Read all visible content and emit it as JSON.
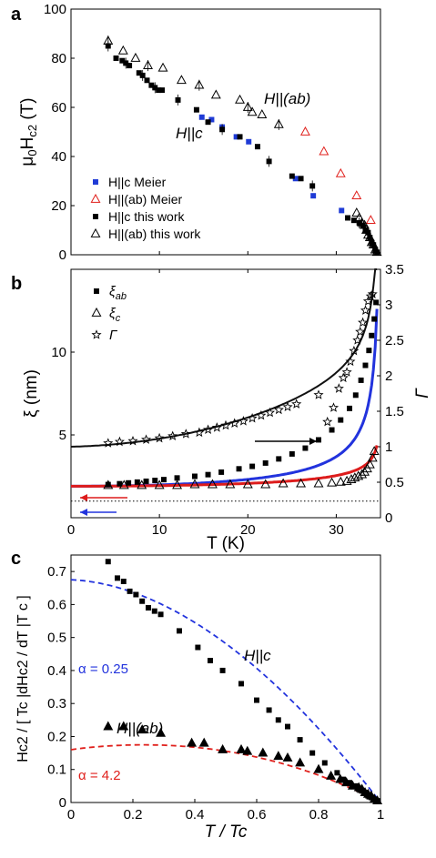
{
  "panels": {
    "a": {
      "letter": "a"
    },
    "b": {
      "letter": "b"
    },
    "c": {
      "letter": "c"
    }
  },
  "chart_data": [
    {
      "type": "scatter",
      "panel": "a",
      "ylabel": "μ0Hc2 (T)",
      "xlim": [
        0,
        35
      ],
      "ylim": [
        0,
        100
      ],
      "yticks": [
        0,
        20,
        40,
        60,
        80,
        100
      ],
      "annotations": [
        "H||(ab)",
        "H||c"
      ],
      "legend": {
        "position": "bottom-left",
        "entries": [
          "H||c Meier",
          "H||(ab) Meier",
          "H||c this work",
          "H||(ab) this work"
        ]
      },
      "series": [
        {
          "name": "H||c Meier",
          "color": "#1f3bd6",
          "marker": "filled-square",
          "x": [
            14.8,
            15.9,
            17.1,
            18.7,
            20.1,
            25.4,
            27.4,
            30.6
          ],
          "y": [
            56,
            55,
            52,
            48,
            46,
            31,
            24,
            18
          ]
        },
        {
          "name": "H||(ab) Meier",
          "color": "#e0201c",
          "marker": "open-triangle",
          "x": [
            26.5,
            28.6,
            30.5,
            32.3,
            33.9
          ],
          "y": [
            50,
            42,
            33,
            24,
            14
          ]
        },
        {
          "name": "H||c this work",
          "color": "#000000",
          "marker": "filled-square",
          "x": [
            4.2,
            5.1,
            5.8,
            6.2,
            6.6,
            7.7,
            8.1,
            8.6,
            9.1,
            9.5,
            9.9,
            10.3,
            12.1,
            14.2,
            15.5,
            17.1,
            19.1,
            21.1,
            22.4,
            25.0,
            26.0,
            27.3,
            31.3,
            32.0,
            32.6,
            33.0,
            33.3,
            33.6,
            33.8,
            34.0,
            34.2,
            34.4,
            34.6
          ],
          "y": [
            85,
            80,
            79,
            78,
            77,
            74,
            73,
            71,
            69,
            68,
            67,
            67,
            63,
            59,
            54,
            51,
            48,
            44,
            38,
            32,
            31,
            28,
            15,
            14,
            13,
            12,
            10,
            9,
            7,
            5,
            4,
            2,
            1
          ]
        },
        {
          "name": "H||(ab) this work",
          "color": "#000000",
          "marker": "open-triangle",
          "x": [
            4.2,
            5.9,
            7.3,
            8.7,
            10.4,
            12.5,
            14.5,
            16.4,
            19.1,
            20.0,
            20.5,
            21.6,
            23.5,
            32.3,
            32.6,
            32.9,
            33.2,
            33.4,
            33.6,
            33.8,
            34.0,
            34.2,
            34.4,
            34.6
          ],
          "y": [
            87,
            83,
            80,
            77,
            76,
            71,
            69,
            65,
            63,
            60,
            58,
            57,
            53,
            17,
            15,
            13,
            12,
            10,
            8,
            7,
            5,
            4,
            2,
            1
          ]
        }
      ]
    },
    {
      "type": "scatter",
      "panel": "b",
      "xlabel": "T  (K)",
      "ylabel": "ξ  (nm)",
      "ylabel_right": "Γ",
      "xlim": [
        0,
        35
      ],
      "ylim": [
        0,
        15
      ],
      "ylim_right": [
        0,
        3.5
      ],
      "xticks": [
        0,
        10,
        20,
        30
      ],
      "yticks": [
        5,
        10
      ],
      "yticks_right": [
        0,
        0.5,
        1,
        1.5,
        2,
        2.5,
        3,
        3.5
      ],
      "legend": {
        "position": "top-right",
        "entries": [
          "ξab",
          "ξc",
          "Γ"
        ]
      },
      "reference_line": {
        "axis": "left",
        "y": 1.0,
        "style": "dotted"
      },
      "series": [
        {
          "name": "ξab",
          "axis": "left",
          "marker": "filled-square",
          "color": "#000000",
          "x": [
            4.2,
            5.5,
            6.5,
            7.5,
            8.5,
            9.5,
            10.5,
            12.0,
            14.0,
            15.5,
            17.0,
            19.0,
            20.5,
            22.0,
            23.5,
            25.0,
            26.5,
            28.0,
            29.5,
            30.5,
            31.5,
            32.2,
            32.8,
            33.3,
            33.7,
            34.0,
            34.3,
            34.5
          ],
          "y": [
            2.0,
            2.05,
            2.1,
            2.15,
            2.2,
            2.25,
            2.3,
            2.4,
            2.5,
            2.6,
            2.75,
            2.95,
            3.1,
            3.3,
            3.55,
            3.85,
            4.2,
            4.7,
            5.3,
            5.9,
            6.6,
            7.4,
            8.3,
            9.2,
            10.1,
            11.0,
            12.0,
            13.0
          ]
        },
        {
          "name": "ξc",
          "axis": "left",
          "marker": "open-triangle",
          "color": "#000000",
          "x": [
            4.2,
            6.0,
            8.0,
            10.0,
            12.0,
            14.0,
            16.0,
            18.0,
            20.0,
            22.0,
            24.0,
            26.0,
            28.0,
            29.5,
            30.5,
            31.2,
            31.7,
            32.1,
            32.5,
            32.9,
            33.2,
            33.5,
            33.8,
            34.1,
            34.3
          ],
          "y": [
            1.95,
            1.95,
            1.95,
            1.95,
            1.95,
            2.0,
            2.0,
            2.0,
            2.0,
            2.0,
            2.05,
            2.05,
            2.05,
            2.1,
            2.15,
            2.2,
            2.3,
            2.4,
            2.5,
            2.6,
            2.75,
            2.95,
            3.2,
            3.6,
            4.0
          ]
        },
        {
          "name": "Γ",
          "axis": "right",
          "marker": "open-star",
          "color": "#000000",
          "x": [
            4.2,
            5.5,
            7.0,
            8.5,
            10.0,
            11.5,
            13.0,
            14.5,
            15.5,
            16.5,
            17.5,
            18.5,
            19.5,
            20.5,
            21.5,
            22.5,
            23.5,
            24.5,
            25.5,
            28.0,
            29.0,
            29.7,
            30.3,
            30.8,
            31.2,
            31.6,
            32.0,
            32.4,
            32.7,
            33.0,
            33.3,
            33.6,
            33.9,
            34.1
          ],
          "y": [
            1.05,
            1.07,
            1.08,
            1.1,
            1.12,
            1.15,
            1.18,
            1.2,
            1.24,
            1.27,
            1.3,
            1.33,
            1.36,
            1.4,
            1.44,
            1.48,
            1.52,
            1.56,
            1.6,
            1.73,
            1.35,
            1.55,
            1.82,
            1.97,
            2.05,
            2.2,
            2.35,
            2.5,
            2.62,
            2.75,
            2.92,
            3.05,
            3.12,
            3.15
          ]
        }
      ],
      "fit_curves": [
        {
          "for": "ξab",
          "color": "#2233dd",
          "axis": "left"
        },
        {
          "for": "ξc",
          "color": "#dd1c1c",
          "axis": "left"
        },
        {
          "for": "Γ",
          "color": "#111111",
          "axis": "right"
        }
      ],
      "arrows": [
        {
          "direction": "right",
          "color": "#000000",
          "points_to": "right axis"
        },
        {
          "direction": "left",
          "color": "#dd1c1c",
          "points_to": "left axis"
        },
        {
          "direction": "left",
          "color": "#2233dd",
          "points_to": "left axis"
        }
      ]
    },
    {
      "type": "scatter",
      "panel": "c",
      "xlabel": "T / Tc",
      "ylabel": "Hc2 / [ Tc |dHc2 / dT |T c ]",
      "xlim": [
        0,
        1
      ],
      "ylim": [
        0,
        0.75
      ],
      "xticks": [
        0,
        0.2,
        0.4,
        0.6,
        0.8,
        1
      ],
      "yticks": [
        0,
        0.1,
        0.2,
        0.3,
        0.4,
        0.5,
        0.6,
        0.7
      ],
      "annotations": [
        "H||c",
        "H||(ab)",
        "α = 0.25",
        "α = 4.2"
      ],
      "series": [
        {
          "name": "H||c",
          "marker": "filled-square",
          "color": "#000000",
          "x": [
            0.12,
            0.15,
            0.17,
            0.19,
            0.21,
            0.23,
            0.25,
            0.27,
            0.29,
            0.35,
            0.41,
            0.45,
            0.49,
            0.55,
            0.6,
            0.64,
            0.67,
            0.7,
            0.74,
            0.78,
            0.82,
            0.86,
            0.88,
            0.9,
            0.92,
            0.93,
            0.94,
            0.95,
            0.96,
            0.97,
            0.98,
            0.99
          ],
          "y": [
            0.73,
            0.68,
            0.67,
            0.64,
            0.63,
            0.61,
            0.59,
            0.58,
            0.57,
            0.52,
            0.47,
            0.43,
            0.4,
            0.36,
            0.31,
            0.28,
            0.25,
            0.23,
            0.19,
            0.15,
            0.12,
            0.09,
            0.07,
            0.06,
            0.05,
            0.04,
            0.035,
            0.03,
            0.02,
            0.015,
            0.01,
            0.005
          ]
        },
        {
          "name": "H||(ab)",
          "marker": "filled-triangle",
          "color": "#000000",
          "x": [
            0.12,
            0.17,
            0.23,
            0.29,
            0.39,
            0.43,
            0.49,
            0.55,
            0.57,
            0.62,
            0.67,
            0.7,
            0.74,
            0.8,
            0.84,
            0.87,
            0.89,
            0.91,
            0.93,
            0.94,
            0.95,
            0.96,
            0.97,
            0.98,
            0.99
          ],
          "y": [
            0.23,
            0.23,
            0.22,
            0.21,
            0.18,
            0.18,
            0.16,
            0.16,
            0.155,
            0.15,
            0.14,
            0.135,
            0.12,
            0.1,
            0.08,
            0.07,
            0.06,
            0.05,
            0.045,
            0.04,
            0.03,
            0.025,
            0.02,
            0.01,
            0.005
          ]
        }
      ],
      "fit_curves": [
        {
          "for": "H||c",
          "label": "α = 0.25",
          "color": "#2233dd",
          "style": "dashed",
          "y0": 0.675
        },
        {
          "for": "H||(ab)",
          "label": "α = 4.2",
          "color": "#e0201c",
          "style": "dashed",
          "y0": 0.16
        }
      ]
    }
  ]
}
